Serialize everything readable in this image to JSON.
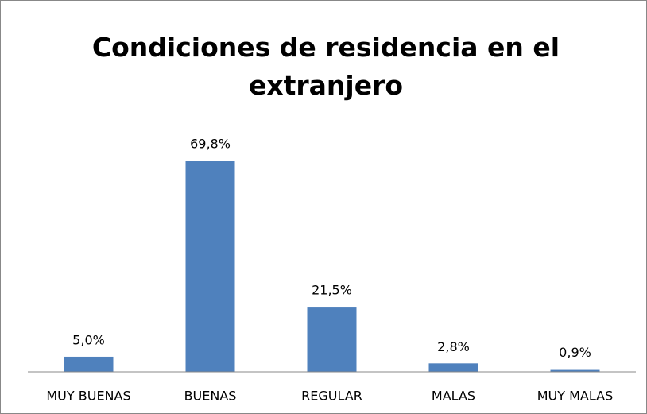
{
  "chart_data": {
    "type": "bar",
    "title": "Condiciones de residencia en el extranjero",
    "categories": [
      "MUY BUENAS",
      "BUENAS",
      "REGULAR",
      "MALAS",
      "MUY MALAS"
    ],
    "values": [
      5.0,
      69.8,
      21.5,
      2.8,
      0.9
    ],
    "value_labels": [
      "5,0%",
      "69,8%",
      "21,5%",
      "2,8%",
      "0,9%"
    ],
    "color": "#4f81bd"
  }
}
